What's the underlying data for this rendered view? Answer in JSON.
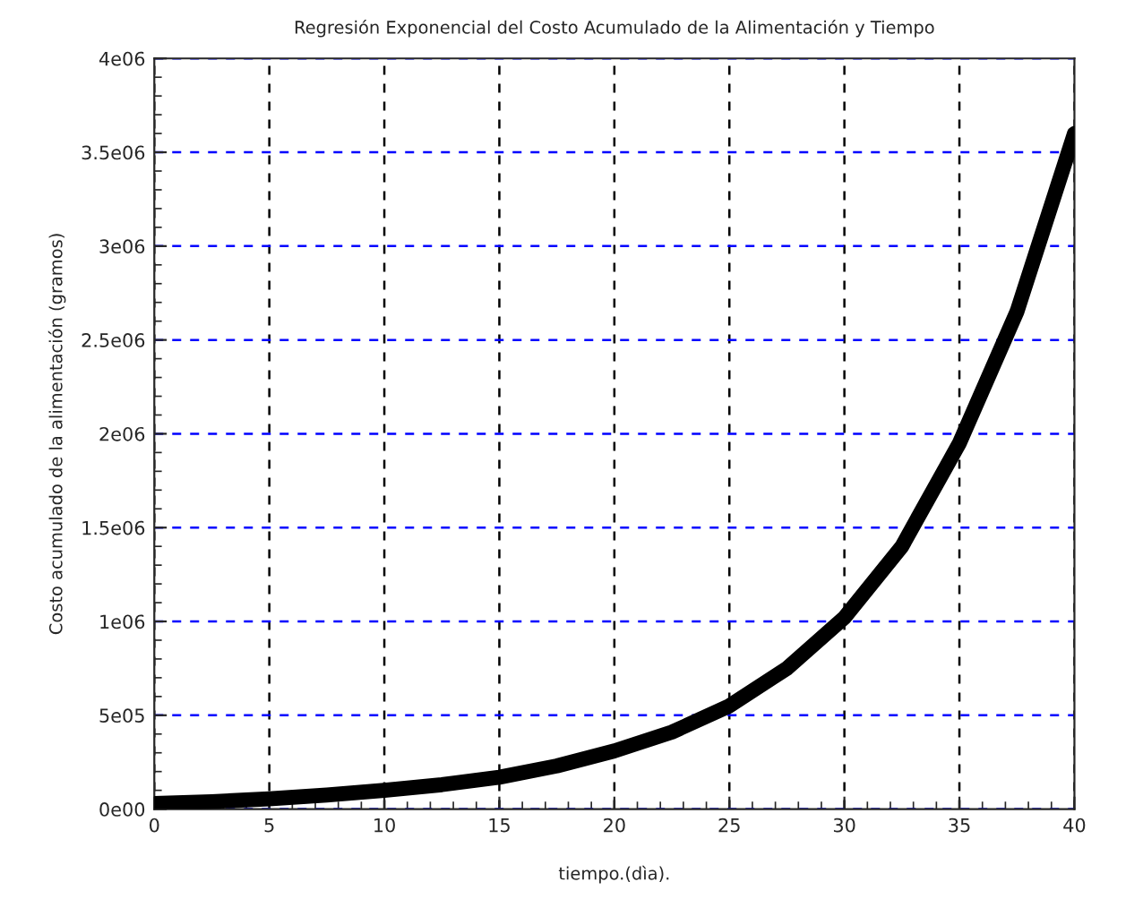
{
  "chart_data": {
    "type": "line",
    "title": "Regresión Exponencial del Costo Acumulado de la Alimentación y Tiempo",
    "xlabel": "tiempo.(dìa).",
    "ylabel": "Costo acumulado de la alimentación (gramos)",
    "x": [
      0,
      2.5,
      5,
      7.5,
      10,
      12.5,
      15,
      17.5,
      20,
      22.5,
      25,
      27.5,
      30,
      32.5,
      35,
      37.5,
      40
    ],
    "series": [
      {
        "color": "#000000",
        "values": [
          30000,
          40000,
          55000,
          75000,
          100000,
          130000,
          170000,
          230000,
          310000,
          410000,
          550000,
          750000,
          1020000,
          1400000,
          1950000,
          2650000,
          3600000
        ]
      }
    ],
    "xlim": [
      0,
      40
    ],
    "xticks": [
      0,
      5,
      10,
      15,
      20,
      25,
      30,
      35,
      40
    ],
    "ylim": [
      0,
      4000000
    ],
    "yticks": [
      {
        "value": 0,
        "label": "0e00"
      },
      {
        "value": 500000,
        "label": "5e05"
      },
      {
        "value": 1000000,
        "label": "1e06"
      },
      {
        "value": 1500000,
        "label": "1.5e06"
      },
      {
        "value": 2000000,
        "label": "2e06"
      },
      {
        "value": 2500000,
        "label": "2.5e06"
      },
      {
        "value": 3000000,
        "label": "3e06"
      },
      {
        "value": 3500000,
        "label": "3.5e06"
      },
      {
        "value": 4000000,
        "label": "4e06"
      }
    ],
    "grid": true,
    "marker": "none",
    "line_style": "solid",
    "legend": false
  }
}
